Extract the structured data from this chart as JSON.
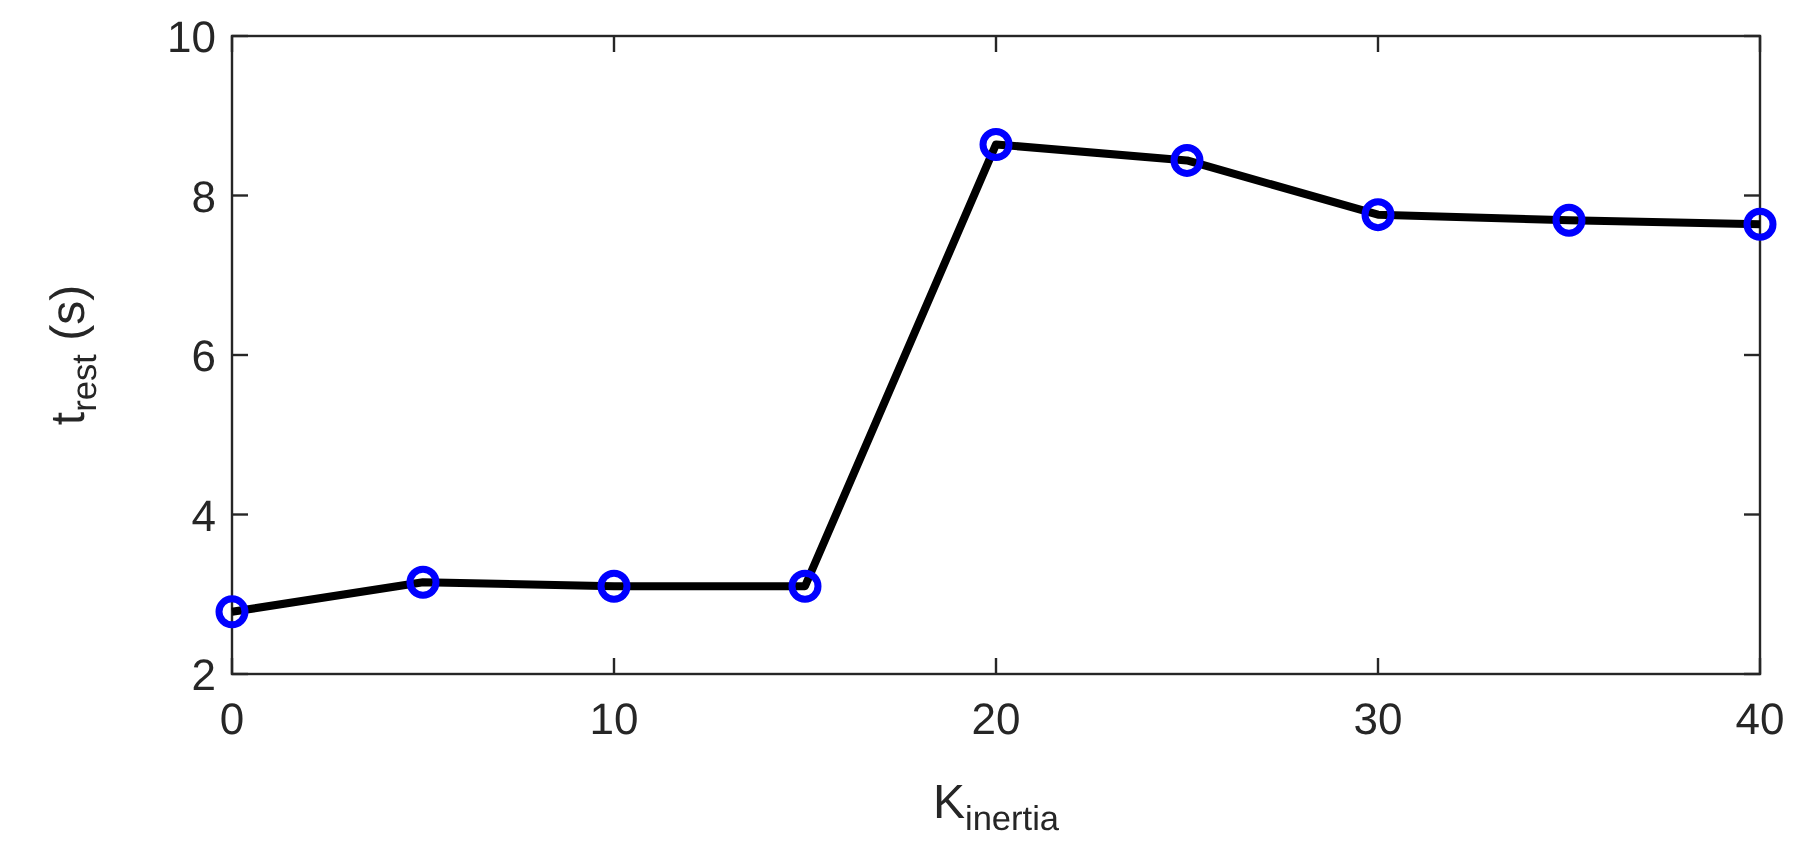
{
  "chart_data": {
    "type": "line",
    "xlabel": "K$_{inertia}$",
    "ylabel": "t$_{rest}$ (s)",
    "x": [
      0,
      5,
      10,
      15,
      20,
      25,
      30,
      35,
      40
    ],
    "series": [
      {
        "color": "#000000",
        "marker": "none",
        "values": [
          2.78,
          3.15,
          3.1,
          3.1,
          8.64,
          8.44,
          7.76,
          7.69,
          7.64
        ]
      },
      {
        "type": "scatter",
        "color": "#0000ff",
        "marker": "circle",
        "values": [
          2.78,
          3.15,
          3.1,
          3.1,
          8.64,
          8.44,
          7.76,
          7.69,
          7.64
        ]
      }
    ],
    "xlim": [
      0,
      40
    ],
    "xticks": [
      0,
      10,
      20,
      30,
      40
    ],
    "ylim": [
      2,
      10
    ],
    "yticks": [
      2,
      4,
      6,
      8,
      10
    ],
    "grid": false
  }
}
